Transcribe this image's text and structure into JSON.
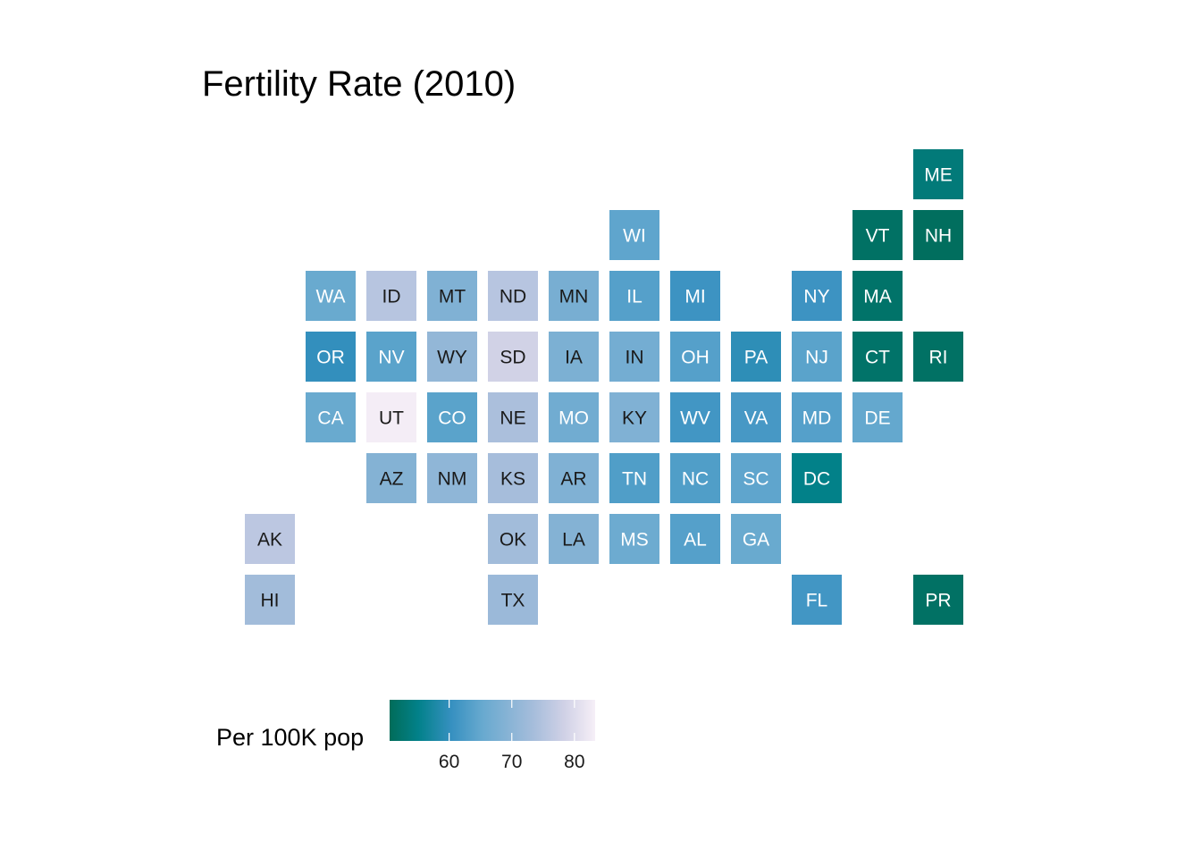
{
  "chart_data": {
    "type": "heatmap",
    "title": "Fertility Rate (2010)",
    "legend": {
      "title": "Per 100K pop",
      "ticks": [
        60,
        70,
        80
      ],
      "min": 50.5,
      "max": 83.3,
      "placement": "bottom-left"
    },
    "colors": {
      "low": "#016c59",
      "mid_low": "#02818a",
      "mid": "#3690c0",
      "mid_high": "#67a9cf",
      "high_mid": "#a6bddb",
      "high_light": "#d0d1e6",
      "high": "#f6eff7"
    },
    "states": [
      {
        "abbr": "ME",
        "col": 11,
        "row": 0,
        "value": 53.5
      },
      {
        "abbr": "WI",
        "col": 6,
        "row": 1,
        "value": 64.5
      },
      {
        "abbr": "VT",
        "col": 10,
        "row": 1,
        "value": 51.5
      },
      {
        "abbr": "NH",
        "col": 11,
        "row": 1,
        "value": 51.0
      },
      {
        "abbr": "WA",
        "col": 1,
        "row": 2,
        "value": 65.5
      },
      {
        "abbr": "ID",
        "col": 2,
        "row": 2,
        "value": 75.5
      },
      {
        "abbr": "MT",
        "col": 3,
        "row": 2,
        "value": 68.5
      },
      {
        "abbr": "ND",
        "col": 4,
        "row": 2,
        "value": 75.5
      },
      {
        "abbr": "MN",
        "col": 5,
        "row": 2,
        "value": 67.5
      },
      {
        "abbr": "IL",
        "col": 6,
        "row": 2,
        "value": 63.5
      },
      {
        "abbr": "MI",
        "col": 7,
        "row": 2,
        "value": 61.0
      },
      {
        "abbr": "NY",
        "col": 9,
        "row": 2,
        "value": 61.0
      },
      {
        "abbr": "MA",
        "col": 10,
        "row": 2,
        "value": 52.0
      },
      {
        "abbr": "OR",
        "col": 1,
        "row": 3,
        "value": 60.0
      },
      {
        "abbr": "NV",
        "col": 2,
        "row": 3,
        "value": 64.0
      },
      {
        "abbr": "WY",
        "col": 3,
        "row": 3,
        "value": 71.0
      },
      {
        "abbr": "SD",
        "col": 4,
        "row": 3,
        "value": 78.5
      },
      {
        "abbr": "IA",
        "col": 5,
        "row": 3,
        "value": 68.0
      },
      {
        "abbr": "IN",
        "col": 6,
        "row": 3,
        "value": 67.0
      },
      {
        "abbr": "OH",
        "col": 7,
        "row": 3,
        "value": 63.5
      },
      {
        "abbr": "PA",
        "col": 8,
        "row": 3,
        "value": 59.5
      },
      {
        "abbr": "NJ",
        "col": 9,
        "row": 3,
        "value": 64.0
      },
      {
        "abbr": "CT",
        "col": 10,
        "row": 3,
        "value": 52.0
      },
      {
        "abbr": "RI",
        "col": 11,
        "row": 3,
        "value": 51.5
      },
      {
        "abbr": "CA",
        "col": 1,
        "row": 4,
        "value": 65.5
      },
      {
        "abbr": "UT",
        "col": 2,
        "row": 4,
        "value": 83.0
      },
      {
        "abbr": "CO",
        "col": 3,
        "row": 4,
        "value": 64.0
      },
      {
        "abbr": "NE",
        "col": 4,
        "row": 4,
        "value": 74.0
      },
      {
        "abbr": "MO",
        "col": 5,
        "row": 4,
        "value": 66.5
      },
      {
        "abbr": "KY",
        "col": 6,
        "row": 4,
        "value": 68.5
      },
      {
        "abbr": "WV",
        "col": 7,
        "row": 4,
        "value": 61.5
      },
      {
        "abbr": "VA",
        "col": 8,
        "row": 4,
        "value": 62.0
      },
      {
        "abbr": "MD",
        "col": 9,
        "row": 4,
        "value": 63.5
      },
      {
        "abbr": "DE",
        "col": 10,
        "row": 4,
        "value": 65.0
      },
      {
        "abbr": "AZ",
        "col": 2,
        "row": 5,
        "value": 69.0
      },
      {
        "abbr": "NM",
        "col": 3,
        "row": 5,
        "value": 70.5
      },
      {
        "abbr": "KS",
        "col": 4,
        "row": 5,
        "value": 73.5
      },
      {
        "abbr": "AR",
        "col": 5,
        "row": 5,
        "value": 68.5
      },
      {
        "abbr": "TN",
        "col": 6,
        "row": 5,
        "value": 63.0
      },
      {
        "abbr": "NC",
        "col": 7,
        "row": 5,
        "value": 63.0
      },
      {
        "abbr": "SC",
        "col": 8,
        "row": 5,
        "value": 64.5
      },
      {
        "abbr": "DC",
        "col": 9,
        "row": 5,
        "value": 55.0
      },
      {
        "abbr": "AK",
        "col": 0,
        "row": 6,
        "value": 76.0
      },
      {
        "abbr": "OK",
        "col": 4,
        "row": 6,
        "value": 73.0
      },
      {
        "abbr": "LA",
        "col": 5,
        "row": 6,
        "value": 69.0
      },
      {
        "abbr": "MS",
        "col": 6,
        "row": 6,
        "value": 66.0
      },
      {
        "abbr": "AL",
        "col": 7,
        "row": 6,
        "value": 63.5
      },
      {
        "abbr": "GA",
        "col": 8,
        "row": 6,
        "value": 65.5
      },
      {
        "abbr": "HI",
        "col": 0,
        "row": 7,
        "value": 73.0
      },
      {
        "abbr": "TX",
        "col": 4,
        "row": 7,
        "value": 72.0
      },
      {
        "abbr": "FL",
        "col": 9,
        "row": 7,
        "value": 61.5
      },
      {
        "abbr": "PR",
        "col": 11,
        "row": 7,
        "value": 51.5
      }
    ]
  }
}
